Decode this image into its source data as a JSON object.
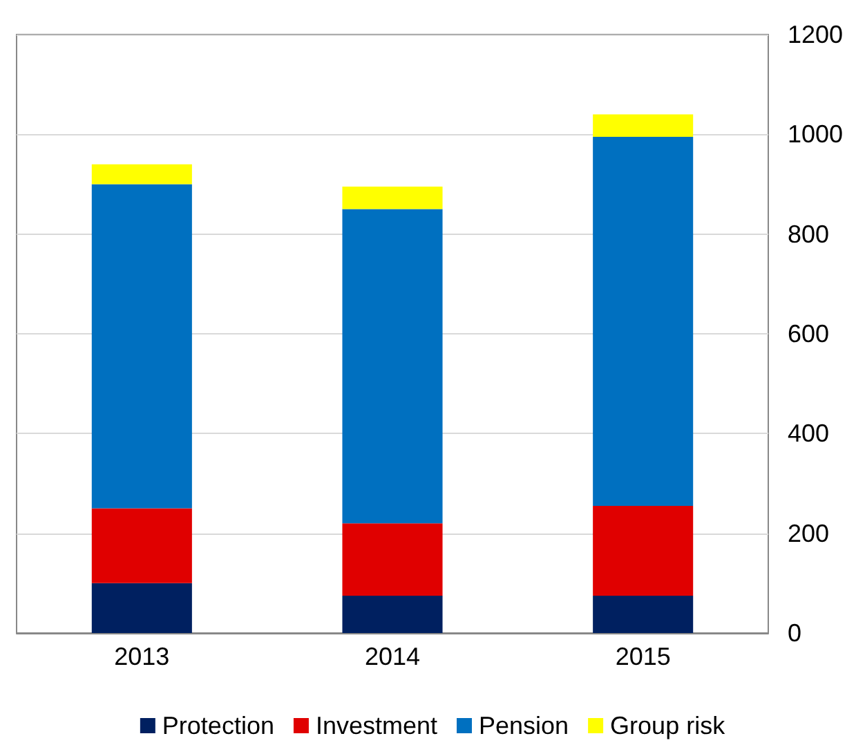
{
  "chart_data": {
    "type": "bar",
    "stacked": true,
    "categories": [
      "2013",
      "2014",
      "2015"
    ],
    "series": [
      {
        "name": "Protection",
        "color": "#002060",
        "values": [
          100,
          75,
          75
        ]
      },
      {
        "name": "Investment",
        "color": "#e00000",
        "values": [
          150,
          145,
          180
        ]
      },
      {
        "name": "Pension",
        "color": "#0070c0",
        "values": [
          650,
          630,
          740
        ]
      },
      {
        "name": "Group risk",
        "color": "#ffff00",
        "values": [
          40,
          45,
          45
        ]
      }
    ],
    "ylim": [
      0,
      1200
    ],
    "yticks": [
      0,
      200,
      400,
      600,
      800,
      1000,
      1200
    ],
    "grid": "y",
    "legend": "bottom"
  }
}
